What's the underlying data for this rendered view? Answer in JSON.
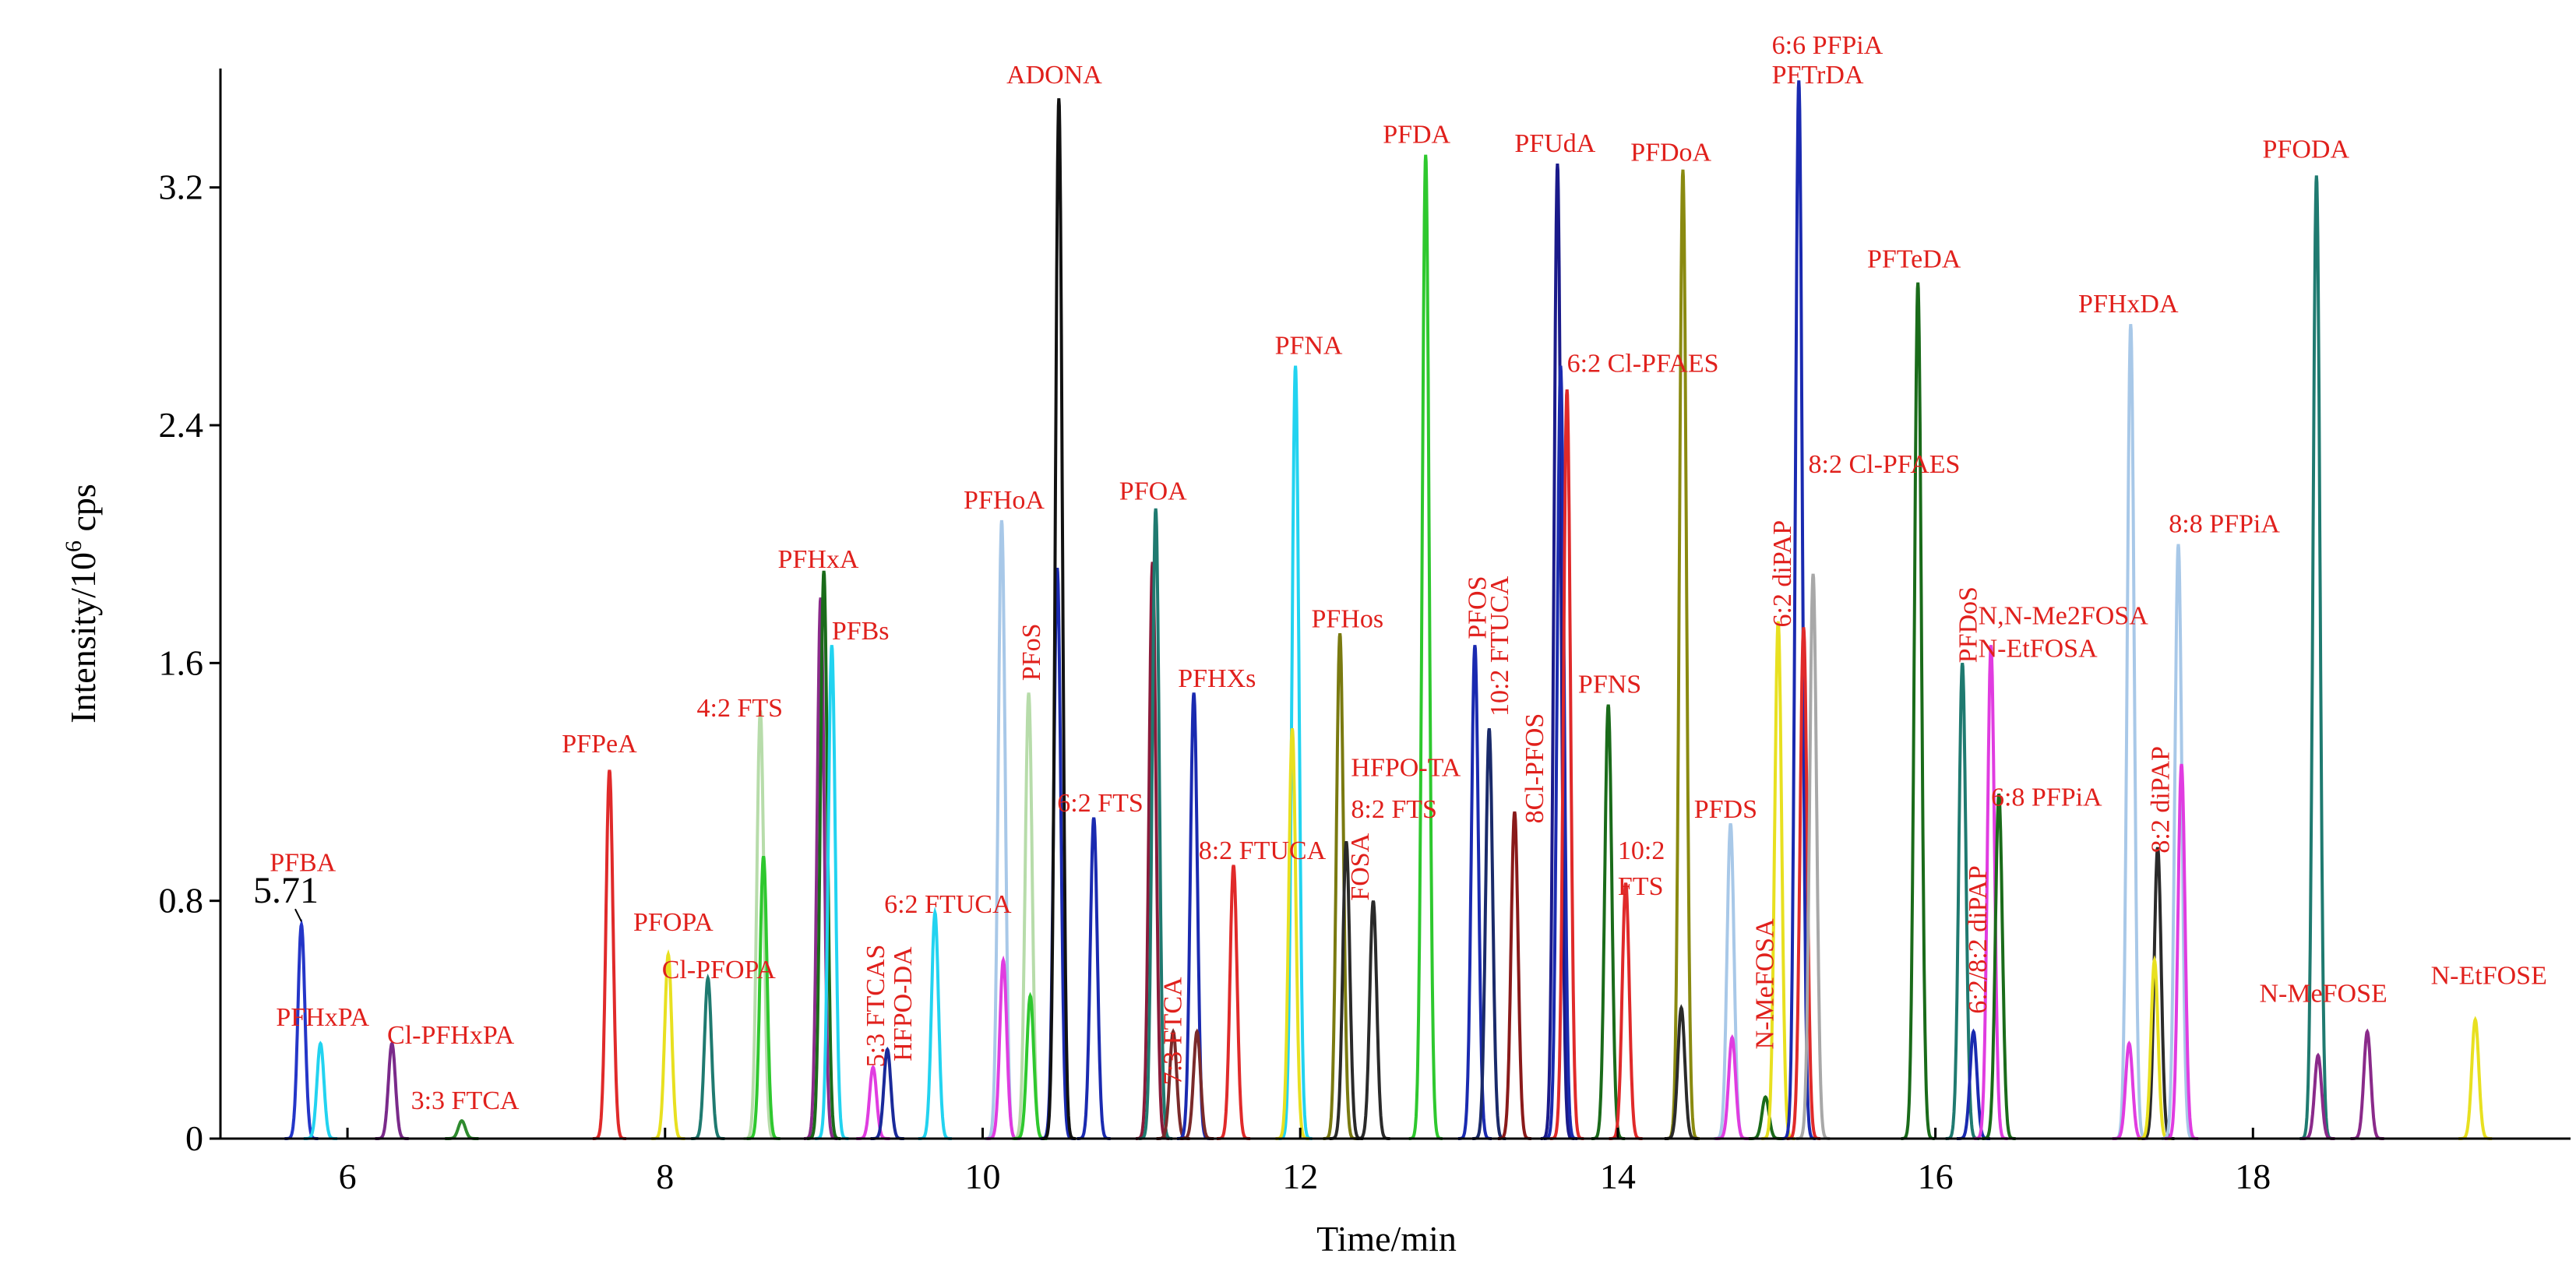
{
  "chart_data": {
    "type": "line",
    "title": "",
    "xlabel": "Time/min",
    "ylabel_main": "Intensity/10",
    "ylabel_sup": "6",
    "ylabel_unit": " cps",
    "xlim": [
      5.2,
      20.0
    ],
    "ylim": [
      0,
      3.6
    ],
    "xticks": [
      6,
      8,
      10,
      12,
      14,
      16,
      18
    ],
    "xtick_labels": [
      "6",
      "8",
      "10",
      "12",
      "14",
      "16",
      "18"
    ],
    "yticks": [
      0,
      0.8,
      1.6,
      2.4,
      3.2
    ],
    "ytick_labels": [
      "0",
      "0.8",
      "1.6",
      "2.4",
      "3.2"
    ],
    "retention_annotation": {
      "text": "5.71",
      "x": 5.71,
      "y": 0.72
    },
    "peaks": [
      {
        "x": 5.71,
        "h": 0.72,
        "color": "#2436c8"
      },
      {
        "x": 5.83,
        "h": 0.32,
        "color": "#22d3f0"
      },
      {
        "x": 6.28,
        "h": 0.32,
        "color": "#7a2a8a"
      },
      {
        "x": 6.72,
        "h": 0.06,
        "color": "#2e8b2e"
      },
      {
        "x": 7.65,
        "h": 1.24,
        "color": "#e02a2a"
      },
      {
        "x": 8.02,
        "h": 0.62,
        "color": "#e8e020"
      },
      {
        "x": 8.27,
        "h": 0.54,
        "color": "#1f7a70"
      },
      {
        "x": 8.6,
        "h": 1.44,
        "color": "#b7dcaa"
      },
      {
        "x": 8.62,
        "h": 0.95,
        "color": "#2ec82e"
      },
      {
        "x": 8.98,
        "h": 1.82,
        "color": "#8a2a8a"
      },
      {
        "x": 9.0,
        "h": 1.91,
        "color": "#1a6b1a"
      },
      {
        "x": 9.05,
        "h": 1.66,
        "color": "#22d3f0"
      },
      {
        "x": 9.31,
        "h": 0.24,
        "color": "#e03ce0"
      },
      {
        "x": 9.4,
        "h": 0.3,
        "color": "#1a2a9a"
      },
      {
        "x": 9.7,
        "h": 0.76,
        "color": "#22d3f0"
      },
      {
        "x": 10.12,
        "h": 2.08,
        "color": "#a8c8e8"
      },
      {
        "x": 10.13,
        "h": 0.6,
        "color": "#e03ce0"
      },
      {
        "x": 10.29,
        "h": 1.5,
        "color": "#b7dcaa"
      },
      {
        "x": 10.3,
        "h": 0.48,
        "color": "#2ec82e"
      },
      {
        "x": 10.47,
        "h": 1.92,
        "color": "#1a2ab0"
      },
      {
        "x": 10.48,
        "h": 3.5,
        "color": "#111111"
      },
      {
        "x": 10.7,
        "h": 1.08,
        "color": "#1a2ab0"
      },
      {
        "x": 11.07,
        "h": 1.94,
        "color": "#8a1a3a"
      },
      {
        "x": 11.09,
        "h": 2.12,
        "color": "#1f7a70"
      },
      {
        "x": 11.2,
        "h": 0.36,
        "color": "#7a2a2a"
      },
      {
        "x": 11.33,
        "h": 1.5,
        "color": "#1a2ab0"
      },
      {
        "x": 11.35,
        "h": 0.36,
        "color": "#7a2a2a"
      },
      {
        "x": 11.58,
        "h": 0.92,
        "color": "#e02a2a"
      },
      {
        "x": 11.97,
        "h": 2.6,
        "color": "#22d3f0"
      },
      {
        "x": 11.95,
        "h": 1.38,
        "color": "#e8e020"
      },
      {
        "x": 12.25,
        "h": 1.7,
        "color": "#7a7a10"
      },
      {
        "x": 12.29,
        "h": 1.0,
        "color": "#2a2a2a"
      },
      {
        "x": 12.46,
        "h": 0.8,
        "color": "#2a2a2a"
      },
      {
        "x": 12.79,
        "h": 3.31,
        "color": "#2ec82e"
      },
      {
        "x": 13.1,
        "h": 1.66,
        "color": "#1a2ab0"
      },
      {
        "x": 13.19,
        "h": 1.38,
        "color": "#1a2a6a"
      },
      {
        "x": 13.35,
        "h": 1.1,
        "color": "#8a1a1a"
      },
      {
        "x": 13.62,
        "h": 3.28,
        "color": "#1a1a8a"
      },
      {
        "x": 13.64,
        "h": 2.6,
        "color": "#1a2ab0"
      },
      {
        "x": 13.68,
        "h": 2.52,
        "color": "#e02a2a"
      },
      {
        "x": 13.94,
        "h": 1.46,
        "color": "#1a6b1a"
      },
      {
        "x": 14.05,
        "h": 0.86,
        "color": "#e02a2a"
      },
      {
        "x": 14.41,
        "h": 3.26,
        "color": "#8a8a10"
      },
      {
        "x": 14.4,
        "h": 0.44,
        "color": "#2a2a2a"
      },
      {
        "x": 14.71,
        "h": 1.06,
        "color": "#a8c8e8"
      },
      {
        "x": 14.72,
        "h": 0.34,
        "color": "#e03ce0"
      },
      {
        "x": 14.93,
        "h": 0.14,
        "color": "#1a6b1a"
      },
      {
        "x": 15.01,
        "h": 1.74,
        "color": "#e8e020"
      },
      {
        "x": 15.14,
        "h": 3.56,
        "color": "#1a2ab0"
      },
      {
        "x": 15.17,
        "h": 1.72,
        "color": "#e02a2a"
      },
      {
        "x": 15.23,
        "h": 1.9,
        "color": "#a8a8a8"
      },
      {
        "x": 15.89,
        "h": 2.88,
        "color": "#1a6b1a"
      },
      {
        "x": 16.17,
        "h": 1.6,
        "color": "#1f7a70"
      },
      {
        "x": 16.24,
        "h": 0.36,
        "color": "#1a2ab0"
      },
      {
        "x": 16.35,
        "h": 1.66,
        "color": "#e03ce0"
      },
      {
        "x": 16.4,
        "h": 1.16,
        "color": "#1a6b1a"
      },
      {
        "x": 17.23,
        "h": 2.74,
        "color": "#a8c8e8"
      },
      {
        "x": 17.22,
        "h": 0.32,
        "color": "#e03ce0"
      },
      {
        "x": 17.4,
        "h": 0.98,
        "color": "#2a2a2a"
      },
      {
        "x": 17.38,
        "h": 0.6,
        "color": "#e8e020"
      },
      {
        "x": 17.53,
        "h": 2.0,
        "color": "#a8c8e8"
      },
      {
        "x": 17.55,
        "h": 1.26,
        "color": "#e03ce0"
      },
      {
        "x": 18.4,
        "h": 3.24,
        "color": "#1f7a70"
      },
      {
        "x": 18.41,
        "h": 0.28,
        "color": "#8a2a8a"
      },
      {
        "x": 18.72,
        "h": 0.36,
        "color": "#8a2a8a"
      },
      {
        "x": 19.4,
        "h": 0.4,
        "color": "#e8e020"
      }
    ],
    "labels": [
      {
        "text": "PFBA",
        "x": 5.51,
        "y": 0.9
      },
      {
        "text": "PFHxPA",
        "x": 5.55,
        "y": 0.38
      },
      {
        "text": "Cl-PFHxPA",
        "x": 6.25,
        "y": 0.32
      },
      {
        "text": "3:3 FTCA",
        "x": 6.4,
        "y": 0.1
      },
      {
        "text": "PFPeA",
        "x": 7.35,
        "y": 1.3
      },
      {
        "text": "PFOPA",
        "x": 7.8,
        "y": 0.7
      },
      {
        "text": "Cl-PFOPA",
        "x": 7.98,
        "y": 0.54
      },
      {
        "text": "4:2 FTS",
        "x": 8.2,
        "y": 1.42
      },
      {
        "text": "PFHxA",
        "x": 8.71,
        "y": 1.92
      },
      {
        "text": "PFBs",
        "x": 9.05,
        "y": 1.68
      },
      {
        "text": "5:3 FTCAS",
        "x": 9.38,
        "y": 0.24,
        "rot": -90
      },
      {
        "text": "HFPO-DA",
        "x": 9.55,
        "y": 0.26,
        "rot": -90
      },
      {
        "text": "6:2 FTUCA",
        "x": 9.38,
        "y": 0.76
      },
      {
        "text": "PFHoA",
        "x": 9.88,
        "y": 2.12
      },
      {
        "text": "PFoS",
        "x": 10.36,
        "y": 1.54,
        "rot": -90
      },
      {
        "text": "ADONA",
        "x": 10.15,
        "y": 3.55
      },
      {
        "text": "6:2 FTS",
        "x": 10.47,
        "y": 1.1
      },
      {
        "text": "PFOA",
        "x": 10.86,
        "y": 2.15
      },
      {
        "text": "7:3 FTCA",
        "x": 11.25,
        "y": 0.18,
        "rot": -90
      },
      {
        "text": "PFHXs",
        "x": 11.23,
        "y": 1.52
      },
      {
        "text": "8:2 FTUCA",
        "x": 11.36,
        "y": 0.94
      },
      {
        "text": "PFNA",
        "x": 11.84,
        "y": 2.64
      },
      {
        "text": "PFHos",
        "x": 12.07,
        "y": 1.72
      },
      {
        "text": "FOSA",
        "x": 12.43,
        "y": 0.8,
        "rot": -90
      },
      {
        "text": "HFPO-TA",
        "x": 12.32,
        "y": 1.22
      },
      {
        "text": "8:2 FTS",
        "x": 12.32,
        "y": 1.08
      },
      {
        "text": "PFDA",
        "x": 12.52,
        "y": 3.35
      },
      {
        "text": "PFOS",
        "x": 13.17,
        "y": 1.68,
        "rot": -90
      },
      {
        "text": "10:2 FTUCA",
        "x": 13.31,
        "y": 1.42,
        "rot": -90
      },
      {
        "text": "8Cl-PFOS",
        "x": 13.53,
        "y": 1.06,
        "rot": -90
      },
      {
        "text": "PFUdA",
        "x": 13.35,
        "y": 3.32
      },
      {
        "text": "6:2 Cl-PFAES",
        "x": 13.68,
        "y": 2.58
      },
      {
        "text": "PFDoA",
        "x": 14.08,
        "y": 3.29
      },
      {
        "text": "PFNS",
        "x": 13.75,
        "y": 1.5
      },
      {
        "text": "10:2",
        "x": 14.0,
        "y": 0.94
      },
      {
        "text": "FTS",
        "x": 14.0,
        "y": 0.82
      },
      {
        "text": "PFDS",
        "x": 14.48,
        "y": 1.08
      },
      {
        "text": "N-MeFOSA",
        "x": 14.98,
        "y": 0.3,
        "rot": -90
      },
      {
        "text": "6:2 diPAP",
        "x": 15.09,
        "y": 1.72,
        "rot": -90
      },
      {
        "text": "6:6 PFPiA",
        "x": 14.97,
        "y": 3.65
      },
      {
        "text": "PFTrDA",
        "x": 14.97,
        "y": 3.55
      },
      {
        "text": "8:2 Cl-PFAES",
        "x": 15.2,
        "y": 2.24
      },
      {
        "text": "PFTeDA",
        "x": 15.57,
        "y": 2.93
      },
      {
        "text": "PFDoS",
        "x": 16.26,
        "y": 1.6,
        "rot": -90
      },
      {
        "text": "N,N-Me2FOSA",
        "x": 16.27,
        "y": 1.73
      },
      {
        "text": "N-EtFOSA",
        "x": 16.27,
        "y": 1.62
      },
      {
        "text": "6:2/8:2 diPAP",
        "x": 16.32,
        "y": 0.42,
        "rot": -90
      },
      {
        "text": "6:8 PFPiA",
        "x": 16.35,
        "y": 1.12
      },
      {
        "text": "PFHxDA",
        "x": 16.9,
        "y": 2.78
      },
      {
        "text": "8:2 diPAP",
        "x": 17.47,
        "y": 0.96,
        "rot": -90
      },
      {
        "text": "8:8 PFPiA",
        "x": 17.47,
        "y": 2.04
      },
      {
        "text": "PFODA",
        "x": 18.06,
        "y": 3.3
      },
      {
        "text": "N-MeFOSE",
        "x": 18.04,
        "y": 0.46
      },
      {
        "text": "N-EtFOSE",
        "x": 19.12,
        "y": 0.52
      }
    ]
  }
}
